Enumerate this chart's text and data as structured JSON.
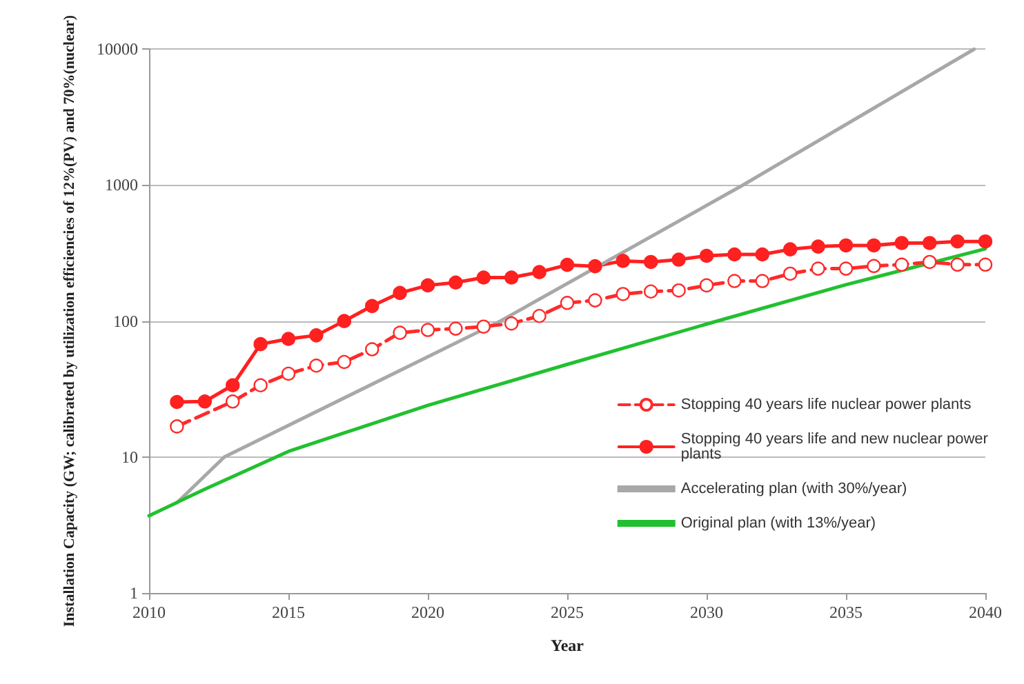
{
  "chart_data": {
    "type": "line",
    "xlabel": "Year",
    "ylabel": "Installation Capacity (GW; calibrated by utilization efficiencies of 12%(PV) and 70%(nuclear)",
    "xlim": [
      2010,
      2040
    ],
    "xticks": [
      2010,
      2015,
      2020,
      2025,
      2030,
      2035,
      2040
    ],
    "ylim": [
      1,
      10000
    ],
    "yticks": [
      1,
      10,
      100,
      1000,
      10000
    ],
    "log": "y",
    "grid": "y",
    "legend": "right",
    "series": [
      {
        "name": "Stopping 40 years life nuclear power plants",
        "color": "#ff2a2a",
        "marker": "circle",
        "line_style": "dashed",
        "x": [
          2011,
          2012,
          2013,
          2014,
          2015,
          2016,
          2017,
          2018,
          2019,
          2020,
          2021,
          2022,
          2023,
          2024,
          2025,
          2026,
          2027,
          2028,
          2029,
          2030,
          2031,
          2032,
          2033,
          2034,
          2035,
          2036,
          2037,
          2038,
          2039,
          2040
        ],
        "values": [
          16.8,
          null,
          25.6,
          33.7,
          41,
          47,
          50,
          62,
          82,
          86,
          88,
          91,
          96,
          109,
          136,
          142,
          158,
          165,
          168,
          183,
          197,
          197,
          223,
          243,
          243,
          254,
          260,
          272,
          260,
          260
        ]
      },
      {
        "name": "Stopping 40 years life and new nuclear power plants",
        "color": "#ff2020",
        "marker": "circle",
        "line_style": "solid",
        "x": [
          2011,
          2012,
          2013,
          2014,
          2015,
          2016,
          2017,
          2018,
          2019,
          2020,
          2021,
          2022,
          2023,
          2024,
          2025,
          2026,
          2027,
          2028,
          2029,
          2030,
          2031,
          2032,
          2033,
          2034,
          2035,
          2036,
          2037,
          2038,
          2039,
          2040
        ],
        "values": [
          25.4,
          25.6,
          33.7,
          67.6,
          73.9,
          78.5,
          100,
          129,
          161,
          183,
          192,
          209,
          209,
          229,
          259,
          253,
          277,
          272,
          283,
          302,
          309,
          309,
          337,
          353,
          360,
          360,
          375,
          375,
          385,
          385
        ]
      },
      {
        "name": "Accelerating plan (with 30%/year)",
        "color": "#a8a8a8",
        "marker": "none",
        "line_style": "solid",
        "x": [
          2011,
          2012.7,
          2022.6,
          2031.3,
          2039.6
        ],
        "values": [
          4.6,
          10,
          100,
          1000,
          10000
        ]
      },
      {
        "name": "Original plan (with 13%/year)",
        "color": "#22c030",
        "marker": "none",
        "line_style": "solid",
        "x": [
          2010,
          2012,
          2015,
          2020,
          2025,
          2030,
          2035,
          2040
        ],
        "values": [
          3.7,
          5.8,
          11,
          24,
          48,
          95,
          185,
          340
        ]
      }
    ]
  }
}
